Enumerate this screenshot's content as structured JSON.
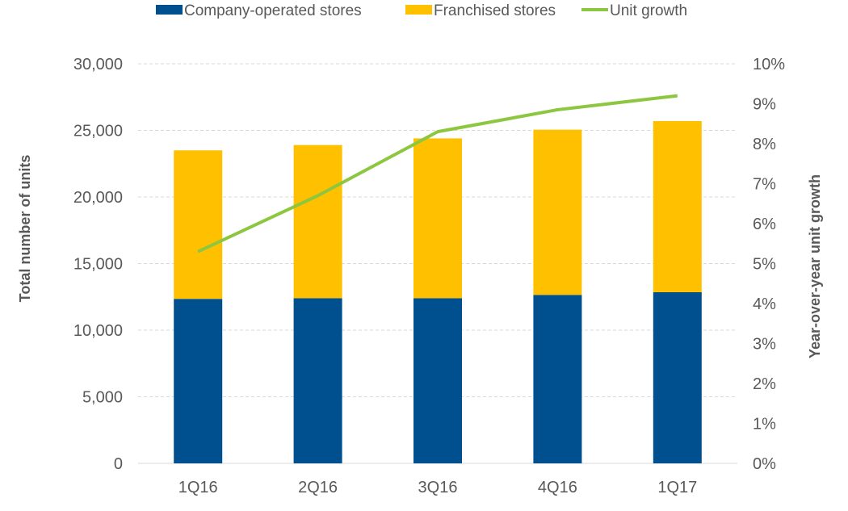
{
  "chart_data": {
    "type": "bar",
    "stacked": true,
    "categories": [
      "1Q16",
      "2Q16",
      "3Q16",
      "4Q16",
      "1Q17"
    ],
    "series": [
      {
        "name": "Company-operated stores",
        "type": "bar",
        "axis": "left",
        "color": "#004F8F",
        "values": [
          12350,
          12400,
          12400,
          12650,
          12850
        ]
      },
      {
        "name": "Franchised stores",
        "type": "bar",
        "axis": "left",
        "color": "#FFC000",
        "values": [
          11150,
          11500,
          12000,
          12400,
          12850
        ]
      },
      {
        "name": "Unit growth",
        "type": "line",
        "axis": "right",
        "color": "#8DC63F",
        "values": [
          5.3,
          6.7,
          8.3,
          8.85,
          9.2
        ]
      }
    ],
    "ylabel": "Total number of units",
    "y2label": "Year-over-year unit growth",
    "ylim": [
      0,
      30000
    ],
    "y2lim": [
      0,
      10
    ],
    "yticks": [
      "0",
      "5,000",
      "10,000",
      "15,000",
      "20,000",
      "25,000",
      "30,000"
    ],
    "y2ticks": [
      "0%",
      "1%",
      "2%",
      "3%",
      "4%",
      "5%",
      "6%",
      "7%",
      "8%",
      "9%",
      "10%"
    ],
    "grid": true,
    "legend": "top"
  }
}
